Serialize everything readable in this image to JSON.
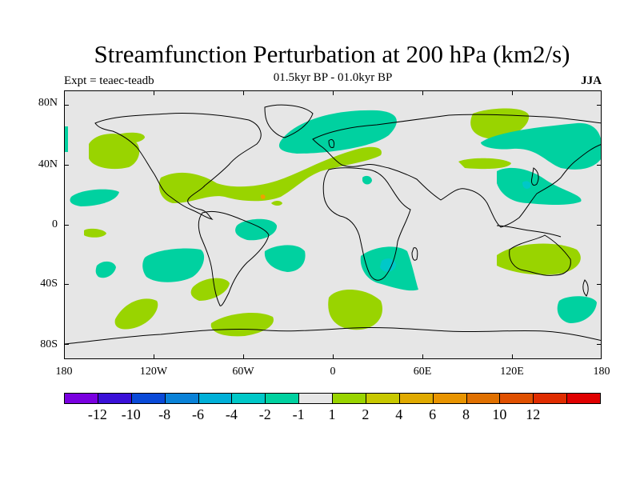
{
  "title": "Streamfunction Perturbation at 200 hPa (km2/s)",
  "subtitle": "01.5kyr BP - 01.0kyr BP",
  "left_label": "Expt = teaec-teadb",
  "right_label": "JJA",
  "map": {
    "lon_range": [
      -180,
      180
    ],
    "lat_range": [
      -90,
      90
    ],
    "y_ticks": [
      "80N",
      "40N",
      "0",
      "40S",
      "80S"
    ],
    "x_ticks": [
      "180",
      "120W",
      "60W",
      "0",
      "60E",
      "120E",
      "180"
    ],
    "background_color": "#e6e6e6",
    "pos_color": "#99d400",
    "neg_color": "#00d1a0",
    "neg2_color": "#00c8c8",
    "pos_orange_color": "#f0a000"
  },
  "colorbar": {
    "colors": [
      "#7a00e0",
      "#3a10d8",
      "#0a4ad8",
      "#0a82d8",
      "#00b0d8",
      "#00c8c8",
      "#00d1a0",
      "#e6e6e6",
      "#99d400",
      "#c8c800",
      "#e0aa00",
      "#e89400",
      "#e07000",
      "#e05000",
      "#e02c00",
      "#e00000"
    ],
    "labels": [
      "-12",
      "-10",
      "-8",
      "-6",
      "-4",
      "-2",
      "-1",
      "1",
      "2",
      "4",
      "6",
      "8",
      "10",
      "12"
    ]
  }
}
